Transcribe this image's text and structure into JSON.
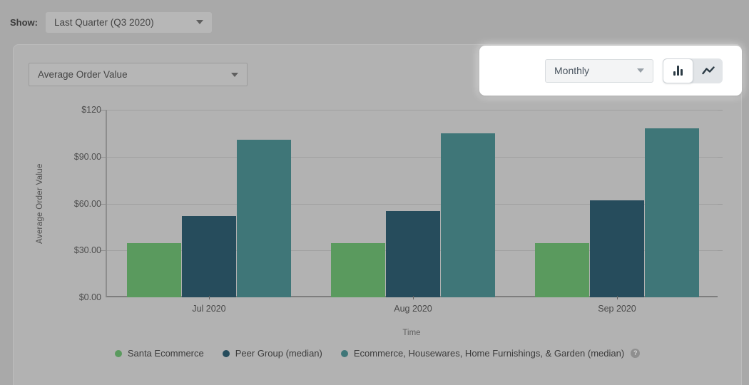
{
  "toolbar": {
    "show_label": "Show:",
    "period_value": "Last Quarter (Q3 2020)"
  },
  "panel": {
    "metric_value": "Average Order Value",
    "interval_value": "Monthly"
  },
  "icons": {
    "bar_chart_toggle": "bar-chart-icon",
    "line_chart_toggle": "line-chart-icon",
    "legend_help_glyph": "?"
  },
  "chart_data": {
    "type": "bar",
    "title": "",
    "xlabel": "Time",
    "ylabel": "Average Order Value",
    "categories": [
      "Jul 2020",
      "Aug 2020",
      "Sep 2020"
    ],
    "series": [
      {
        "name": "Santa Ecommerce",
        "color": "#5a9a5e",
        "values": [
          34.5,
          34.5,
          34.5
        ]
      },
      {
        "name": "Peer Group (median)",
        "color": "#264c5c",
        "values": [
          52,
          55,
          62
        ]
      },
      {
        "name": "Ecommerce, Housewares, Home Furnishings, & Garden (median)",
        "color": "#3f7678",
        "values": [
          101,
          105,
          108
        ]
      }
    ],
    "ylim": [
      0,
      120
    ],
    "yticks": [
      {
        "value": 0,
        "label": "$0.00"
      },
      {
        "value": 30,
        "label": "$30.00"
      },
      {
        "value": 60,
        "label": "$60.00"
      },
      {
        "value": 90,
        "label": "$90.00"
      },
      {
        "value": 120,
        "label": "$120"
      }
    ],
    "grid": true,
    "legend_position": "bottom"
  }
}
